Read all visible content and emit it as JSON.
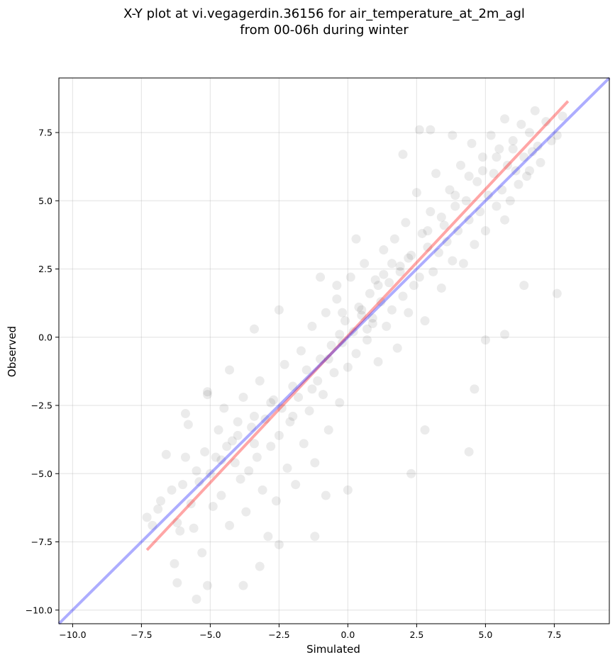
{
  "chart_data": {
    "type": "scatter",
    "title": "X-Y plot at vi.vegagerdin.36156 for air_temperature_at_2m_agl",
    "subtitle": "from 00-06h during winter",
    "xlabel": "Simulated",
    "ylabel": "Observed",
    "xlim": [
      -10.5,
      9.5
    ],
    "ylim": [
      -10.5,
      9.5
    ],
    "xticks": [
      -10.0,
      -7.5,
      -5.0,
      -2.5,
      0.0,
      2.5,
      5.0,
      7.5
    ],
    "yticks": [
      -10.0,
      -7.5,
      -5.0,
      -2.5,
      0.0,
      2.5,
      5.0,
      7.5
    ],
    "xtick_labels": [
      "−10.0",
      "−7.5",
      "−5.0",
      "−2.5",
      "0.0",
      "2.5",
      "5.0",
      "7.5"
    ],
    "ytick_labels": [
      "−10.0",
      "−7.5",
      "−5.0",
      "−2.5",
      "0.0",
      "2.5",
      "5.0",
      "7.5"
    ],
    "grid": true,
    "point_color": "#000000",
    "point_alpha": 0.08,
    "points": [
      [
        -7.3,
        -6.6
      ],
      [
        -7.1,
        -6.9
      ],
      [
        -6.9,
        -6.3
      ],
      [
        -6.8,
        -6.0
      ],
      [
        -6.6,
        -4.3
      ],
      [
        -6.4,
        -5.6
      ],
      [
        -6.3,
        -8.3
      ],
      [
        -6.2,
        -6.8
      ],
      [
        -6.1,
        -7.1
      ],
      [
        -6.0,
        -5.4
      ],
      [
        -5.9,
        -4.4
      ],
      [
        -5.8,
        -3.2
      ],
      [
        -5.7,
        -6.1
      ],
      [
        -5.6,
        -7.0
      ],
      [
        -5.5,
        -4.9
      ],
      [
        -5.4,
        -5.3
      ],
      [
        -5.3,
        -7.9
      ],
      [
        -5.2,
        -4.2
      ],
      [
        -5.1,
        -2.0
      ],
      [
        -5.0,
        -5.0
      ],
      [
        -4.9,
        -6.2
      ],
      [
        -4.8,
        -4.4
      ],
      [
        -4.7,
        -3.4
      ],
      [
        -4.6,
        -5.8
      ],
      [
        -4.5,
        -2.6
      ],
      [
        -4.4,
        -4.0
      ],
      [
        -4.3,
        -6.9
      ],
      [
        -4.2,
        -3.8
      ],
      [
        -4.1,
        -4.6
      ],
      [
        -4.0,
        -3.1
      ],
      [
        -3.9,
        -5.2
      ],
      [
        -3.8,
        -2.2
      ],
      [
        -3.7,
        -6.4
      ],
      [
        -3.6,
        -4.9
      ],
      [
        -3.5,
        -3.3
      ],
      [
        -3.4,
        -2.9
      ],
      [
        -3.3,
        -4.4
      ],
      [
        -3.2,
        -1.6
      ],
      [
        -3.1,
        -5.6
      ],
      [
        -3.0,
        -3.0
      ],
      [
        -2.9,
        -7.3
      ],
      [
        -2.8,
        -4.0
      ],
      [
        -2.7,
        -2.3
      ],
      [
        -2.6,
        -6.0
      ],
      [
        -2.5,
        -3.6
      ],
      [
        -2.4,
        -2.6
      ],
      [
        -2.3,
        -1.0
      ],
      [
        -2.2,
        -4.8
      ],
      [
        -2.1,
        -3.1
      ],
      [
        -2.0,
        -1.8
      ],
      [
        -1.9,
        -5.4
      ],
      [
        -1.8,
        -2.2
      ],
      [
        -1.7,
        -0.5
      ],
      [
        -1.6,
        -3.9
      ],
      [
        -1.5,
        -1.2
      ],
      [
        -1.4,
        -2.7
      ],
      [
        -1.3,
        0.4
      ],
      [
        -1.2,
        -4.6
      ],
      [
        -1.1,
        -1.6
      ],
      [
        -1.0,
        -0.8
      ],
      [
        -0.9,
        -2.1
      ],
      [
        -0.8,
        0.9
      ],
      [
        -0.7,
        -3.4
      ],
      [
        -0.6,
        -0.3
      ],
      [
        -0.5,
        -1.3
      ],
      [
        -0.4,
        1.4
      ],
      [
        -0.3,
        -2.4
      ],
      [
        -0.2,
        -0.2
      ],
      [
        -0.1,
        0.6
      ],
      [
        0.0,
        -1.1
      ],
      [
        0.1,
        2.2
      ],
      [
        0.2,
        0.2
      ],
      [
        0.3,
        -0.6
      ],
      [
        0.4,
        1.1
      ],
      [
        0.5,
        0.8
      ],
      [
        0.6,
        2.7
      ],
      [
        0.7,
        -0.1
      ],
      [
        0.8,
        1.6
      ],
      [
        0.9,
        0.7
      ],
      [
        1.0,
        2.1
      ],
      [
        1.1,
        -0.9
      ],
      [
        1.2,
        1.3
      ],
      [
        1.3,
        3.2
      ],
      [
        1.4,
        0.4
      ],
      [
        1.5,
        2.0
      ],
      [
        1.6,
        1.0
      ],
      [
        1.7,
        3.6
      ],
      [
        1.8,
        -0.4
      ],
      [
        1.9,
        2.4
      ],
      [
        2.0,
        1.5
      ],
      [
        2.1,
        4.2
      ],
      [
        2.2,
        0.9
      ],
      [
        2.3,
        3.0
      ],
      [
        2.4,
        1.9
      ],
      [
        2.5,
        5.3
      ],
      [
        2.6,
        2.2
      ],
      [
        2.7,
        3.8
      ],
      [
        2.8,
        0.6
      ],
      [
        2.9,
        3.3
      ],
      [
        3.0,
        4.6
      ],
      [
        3.1,
        2.4
      ],
      [
        3.2,
        6.0
      ],
      [
        3.3,
        3.1
      ],
      [
        3.4,
        1.8
      ],
      [
        3.5,
        4.1
      ],
      [
        3.6,
        3.5
      ],
      [
        3.7,
        5.4
      ],
      [
        3.8,
        2.8
      ],
      [
        3.9,
        4.8
      ],
      [
        4.0,
        3.9
      ],
      [
        4.1,
        6.3
      ],
      [
        4.2,
        2.7
      ],
      [
        4.3,
        5.0
      ],
      [
        4.4,
        4.3
      ],
      [
        4.5,
        7.1
      ],
      [
        4.6,
        3.4
      ],
      [
        4.7,
        5.7
      ],
      [
        4.8,
        4.6
      ],
      [
        4.9,
        6.6
      ],
      [
        5.0,
        3.9
      ],
      [
        5.1,
        5.2
      ],
      [
        5.2,
        7.4
      ],
      [
        5.3,
        6.0
      ],
      [
        5.4,
        4.8
      ],
      [
        5.5,
        6.9
      ],
      [
        5.6,
        5.4
      ],
      [
        5.7,
        8.0
      ],
      [
        5.8,
        6.3
      ],
      [
        5.9,
        5.0
      ],
      [
        6.0,
        7.2
      ],
      [
        6.1,
        6.1
      ],
      [
        6.2,
        5.6
      ],
      [
        6.3,
        7.8
      ],
      [
        6.4,
        6.6
      ],
      [
        6.5,
        5.9
      ],
      [
        6.6,
        7.5
      ],
      [
        6.7,
        6.8
      ],
      [
        6.8,
        8.3
      ],
      [
        6.9,
        7.0
      ],
      [
        7.0,
        6.4
      ],
      [
        7.2,
        7.9
      ],
      [
        7.4,
        7.2
      ],
      [
        7.6,
        7.4
      ],
      [
        7.8,
        8.1
      ],
      [
        -2.5,
        1.0
      ],
      [
        -3.4,
        0.3
      ],
      [
        -1.0,
        2.2
      ],
      [
        0.3,
        3.6
      ],
      [
        2.0,
        6.7
      ],
      [
        2.6,
        7.6
      ],
      [
        3.0,
        7.6
      ],
      [
        3.8,
        7.4
      ],
      [
        5.7,
        4.3
      ],
      [
        6.4,
        1.9
      ],
      [
        7.6,
        1.6
      ],
      [
        5.7,
        0.1
      ],
      [
        5.0,
        -0.1
      ],
      [
        4.6,
        -1.9
      ],
      [
        4.4,
        -4.2
      ],
      [
        2.8,
        -3.4
      ],
      [
        2.3,
        -5.0
      ],
      [
        0.0,
        -5.6
      ],
      [
        -0.8,
        -5.8
      ],
      [
        -1.2,
        -7.3
      ],
      [
        -2.5,
        -7.6
      ],
      [
        -3.2,
        -8.4
      ],
      [
        -3.8,
        -9.1
      ],
      [
        -5.1,
        -9.1
      ],
      [
        -5.5,
        -9.6
      ],
      [
        -6.2,
        -9.0
      ],
      [
        -5.9,
        -2.8
      ],
      [
        -5.1,
        -2.1
      ],
      [
        -4.3,
        -1.2
      ],
      [
        -0.4,
        1.9
      ],
      [
        0.5,
        1.0
      ],
      [
        0.9,
        0.5
      ],
      [
        1.1,
        1.9
      ],
      [
        -0.2,
        0.9
      ],
      [
        0.7,
        0.3
      ],
      [
        1.6,
        2.7
      ],
      [
        2.2,
        2.9
      ],
      [
        2.9,
        3.9
      ],
      [
        3.4,
        4.4
      ],
      [
        3.9,
        5.2
      ],
      [
        4.4,
        5.9
      ],
      [
        4.9,
        6.1
      ],
      [
        5.4,
        6.6
      ],
      [
        6.0,
        6.9
      ],
      [
        6.6,
        6.1
      ],
      [
        -4.6,
        -4.5
      ],
      [
        -4.0,
        -3.6
      ],
      [
        -3.4,
        -3.9
      ],
      [
        -2.8,
        -2.4
      ],
      [
        -2.0,
        -2.9
      ],
      [
        -1.3,
        -1.9
      ],
      [
        -0.7,
        -0.8
      ],
      [
        -0.3,
        0.1
      ],
      [
        1.3,
        2.3
      ],
      [
        1.9,
        2.6
      ]
    ],
    "lines": [
      {
        "color": "#ff0000",
        "alpha": 0.35,
        "x": [
          -7.3,
          8.0
        ],
        "y": [
          -7.8,
          8.65
        ]
      },
      {
        "color": "#0000ff",
        "alpha": 0.32,
        "x": [
          -10.5,
          9.5
        ],
        "y": [
          -10.5,
          9.5
        ]
      }
    ]
  }
}
